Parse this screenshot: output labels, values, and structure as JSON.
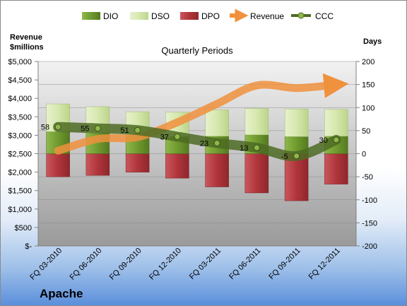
{
  "chart_data": {
    "type": "bar",
    "subtitle": "Quarterly Periods",
    "company": "Apache",
    "left_axis_label_line1": "Revenue",
    "left_axis_label_line2": "$millions",
    "right_axis_label": "Days",
    "categories": [
      "FQ 03-2010",
      "FQ 06-2010",
      "FQ 09-2010",
      "FQ 12-2010",
      "FQ 03-2011",
      "FQ 06-2011",
      "FQ 09-2011",
      "FQ 12-2011"
    ],
    "left_ticks": [
      "$-",
      "$500",
      "$1,000",
      "$1,500",
      "$2,000",
      "$2,500",
      "$3,000",
      "$3,500",
      "$4,000",
      "$4,500",
      "$5,000"
    ],
    "right_ticks": [
      "-200",
      "-150",
      "-100",
      "-50",
      "0",
      "50",
      "100",
      "150",
      "200"
    ],
    "left_ylim": [
      0,
      5000
    ],
    "right_ylim": [
      -200,
      200
    ],
    "legend": {
      "dio": "DIO",
      "dso": "DSO",
      "dpo": "DPO",
      "revenue": "Revenue",
      "ccc": "CCC"
    },
    "series": [
      {
        "name": "DIO",
        "unit": "days",
        "values": [
          48,
          45,
          40,
          37,
          38,
          41,
          37,
          38
        ]
      },
      {
        "name": "DSO",
        "unit": "days",
        "values": [
          60,
          57,
          51,
          53,
          57,
          57,
          60,
          58
        ]
      },
      {
        "name": "DPO",
        "unit": "days",
        "values": [
          -50,
          -47,
          -40,
          -53,
          -72,
          -85,
          -102,
          -66
        ]
      },
      {
        "name": "Revenue",
        "unit": "$millions",
        "values": [
          2580,
          2900,
          2950,
          3350,
          3850,
          4350,
          4280,
          4370
        ]
      },
      {
        "name": "CCC",
        "unit": "days",
        "values": [
          58,
          55,
          51,
          37,
          23,
          13,
          -5,
          30
        ]
      }
    ],
    "ccc_labels": [
      "58",
      "55",
      "51",
      "37",
      "23",
      "13",
      "-5",
      "30"
    ],
    "colors": {
      "dio": "#6f9a2f",
      "dso": "#d6e8ae",
      "dpo": "#b0353b",
      "revenue": "#f0913d",
      "ccc": "#4e6b23",
      "plot_bg_top": "#ececec",
      "plot_bg_bottom": "#9f9f9f"
    },
    "grid": true
  }
}
